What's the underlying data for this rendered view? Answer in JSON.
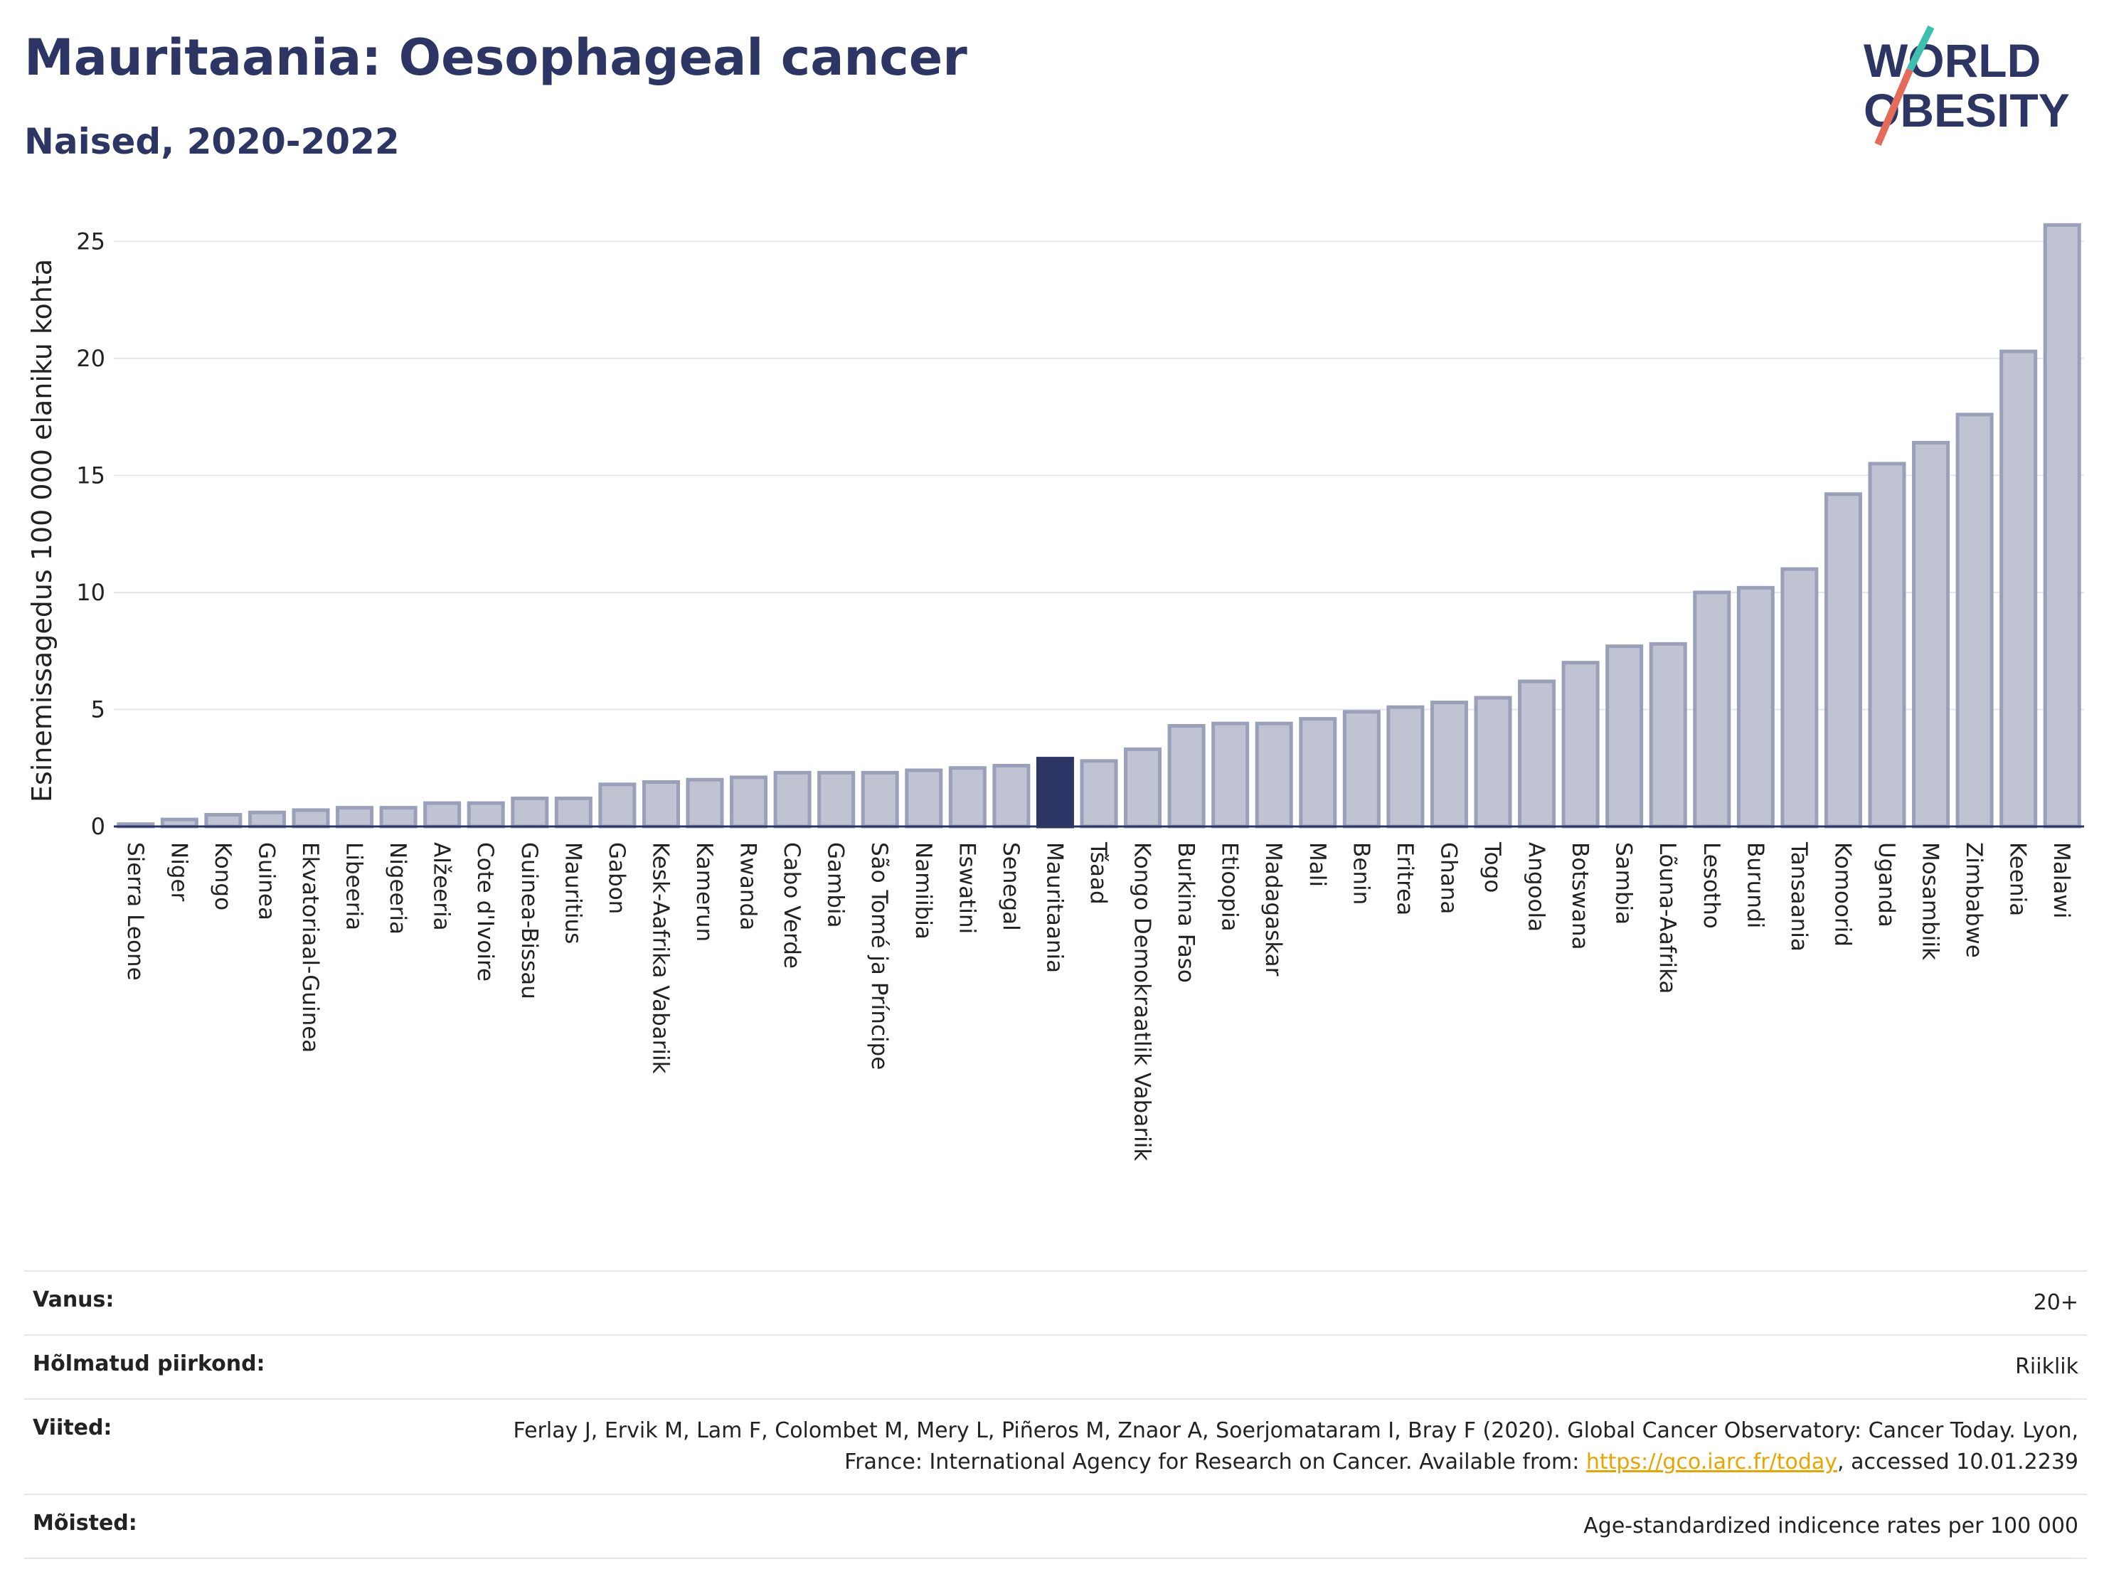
{
  "header": {
    "title": "Mauritaania: Oesophageal cancer",
    "subtitle": "Naised, 2020-2022"
  },
  "logo": {
    "line1": "WORLD",
    "line2": "OBESITY"
  },
  "colors": {
    "bar": "#bfc3d2",
    "bar_stroke": "#9aa0b9",
    "highlight": "#2c3563",
    "title": "#2c3563",
    "grid": "#e6e6ee"
  },
  "chart_data": {
    "type": "bar",
    "ylabel": "Esinemissagedus 100 000 elaniku kohta",
    "ylim": [
      0,
      26.5
    ],
    "yticks": [
      0,
      5,
      10,
      15,
      20,
      25
    ],
    "grid": true,
    "highlight": "Mauritaania",
    "categories": [
      "Sierra Leone",
      "Niger",
      "Kongo",
      "Guinea",
      "Ekvatoriaal-Guinea",
      "Libeeria",
      "Nigeeria",
      "Alžeeria",
      "Cote d'Ivoire",
      "Guinea-Bissau",
      "Mauritius",
      "Gabon",
      "Kesk-Aafrika Vabariik",
      "Kamerun",
      "Rwanda",
      "Cabo Verde",
      "Gambia",
      "São Tomé ja Príncipe",
      "Namiibia",
      "Eswatini",
      "Senegal",
      "Mauritaania",
      "Tšaad",
      "Kongo Demokraatlik Vabariik",
      "Burkina Faso",
      "Etioopia",
      "Madagaskar",
      "Mali",
      "Benin",
      "Eritrea",
      "Ghana",
      "Togo",
      "Angoola",
      "Botswana",
      "Sambia",
      "Lõuna-Aafrika",
      "Lesotho",
      "Burundi",
      "Tansaania",
      "Komoorid",
      "Uganda",
      "Mosambiik",
      "Zimbabwe",
      "Keenia",
      "Malawi"
    ],
    "values": [
      0.1,
      0.3,
      0.5,
      0.6,
      0.7,
      0.8,
      0.8,
      1.0,
      1.0,
      1.2,
      1.2,
      1.8,
      1.9,
      2.0,
      2.1,
      2.3,
      2.3,
      2.3,
      2.4,
      2.5,
      2.6,
      2.9,
      2.8,
      3.3,
      4.3,
      4.4,
      4.4,
      4.6,
      4.9,
      5.1,
      5.3,
      5.5,
      6.2,
      7.0,
      7.7,
      7.8,
      10.0,
      10.2,
      11.0,
      14.2,
      15.5,
      16.4,
      17.6,
      20.3,
      25.7
    ]
  },
  "info": {
    "age_label": "Vanus:",
    "age_value": "20+",
    "region_label": "Hõlmatud piirkond:",
    "region_value": "Riiklik",
    "refs_label": "Viited:",
    "refs_text1": "Ferlay J, Ervik M, Lam F, Colombet M, Mery L, Piñeros M, Znaor A, Soerjomataram I, Bray F (2020). Global Cancer Observatory: Cancer Today. Lyon, France: International Agency for Research on Cancer. Available from: ",
    "refs_link": "https://gco.iarc.fr/today",
    "refs_text2": ", accessed 10.01.2239",
    "def_label": "Mõisted:",
    "def_value": "Age-standardized indicence rates per 100 000"
  }
}
